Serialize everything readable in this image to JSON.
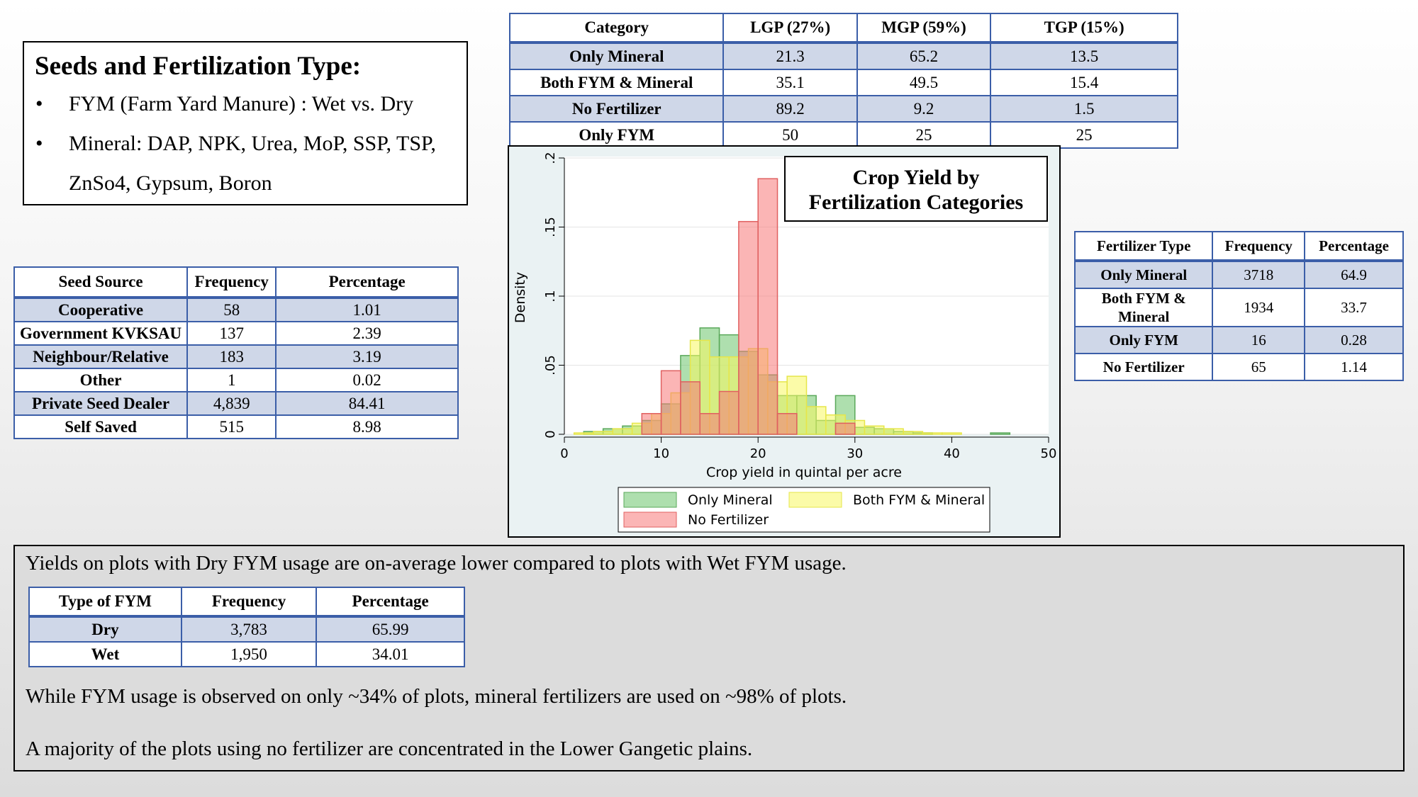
{
  "seeds_fertilization": {
    "title": "Seeds and Fertilization Type:",
    "bullets": [
      "FYM (Farm Yard Manure) : Wet vs. Dry",
      "Mineral: DAP, NPK, Urea, MoP, SSP, TSP, ZnSo4, Gypsum, Boron"
    ]
  },
  "category_table": {
    "headers": [
      "Category",
      "LGP (27%)",
      "MGP (59%)",
      "TGP (15%)"
    ],
    "rows": [
      [
        "Only Mineral",
        "21.3",
        "65.2",
        "13.5"
      ],
      [
        "Both FYM & Mineral",
        "35.1",
        "49.5",
        "15.4"
      ],
      [
        "No Fertilizer",
        "89.2",
        "9.2",
        "1.5"
      ],
      [
        "Only FYM",
        "50",
        "25",
        "25"
      ]
    ]
  },
  "seed_table": {
    "headers": [
      "Seed Source",
      "Frequency",
      "Percentage"
    ],
    "rows": [
      [
        "Cooperative",
        "58",
        "1.01"
      ],
      [
        "Government KVKSAU",
        "137",
        "2.39"
      ],
      [
        "Neighbour/Relative",
        "183",
        "3.19"
      ],
      [
        "Other",
        "1",
        "0.02"
      ],
      [
        "Private Seed Dealer",
        "4,839",
        "84.41"
      ],
      [
        "Self Saved",
        "515",
        "8.98"
      ]
    ]
  },
  "fert_table": {
    "headers": [
      "Fertilizer Type",
      "Frequency",
      "Percentage"
    ],
    "rows": [
      [
        "Only Mineral",
        "3718",
        "64.9"
      ],
      [
        "Both FYM & Mineral",
        "1934",
        "33.7"
      ],
      [
        "Only FYM",
        "16",
        "0.28"
      ],
      [
        "No Fertilizer",
        "65",
        "1.14"
      ]
    ]
  },
  "bottom": {
    "line1": "Yields on plots with Dry FYM usage are on-average lower compared to plots with Wet FYM usage.",
    "line2": "While FYM usage is observed on only ~34% of plots, mineral fertilizers are used on ~98% of plots.",
    "line3": "A majority of the plots using no fertilizer are concentrated in the Lower Gangetic plains."
  },
  "fym_table": {
    "headers": [
      "Type of FYM",
      "Frequency",
      "Percentage"
    ],
    "rows": [
      [
        "Dry",
        "3,783",
        "65.99"
      ],
      [
        "Wet",
        "1,950",
        "34.01"
      ]
    ]
  },
  "chart_data": {
    "type": "histogram",
    "title": "Crop Yield by Fertilization Categories",
    "xlabel": "Crop yield in quintal per acre",
    "ylabel": "Density",
    "xlim": [
      0,
      50
    ],
    "ylim": [
      0,
      0.2
    ],
    "xticks": [
      0,
      10,
      20,
      30,
      40,
      50
    ],
    "xtick_labels": [
      "0",
      "10",
      "20",
      "30",
      "40",
      "50"
    ],
    "yticks": [
      0,
      0.05,
      0.1,
      0.15,
      0.2
    ],
    "ytick_labels": [
      "0",
      ".05",
      ".1",
      ".15",
      ".2"
    ],
    "grid": true,
    "legend_position": "bottom",
    "series": [
      {
        "name": "Only Mineral",
        "color": "#6cc46c",
        "edge": "#5aa85a",
        "bins": [
          [
            2,
            4,
            0.002
          ],
          [
            4,
            6,
            0.004
          ],
          [
            6,
            8,
            0.006
          ],
          [
            8,
            10,
            0.01
          ],
          [
            10,
            12,
            0.022
          ],
          [
            12,
            14,
            0.057
          ],
          [
            14,
            16,
            0.077
          ],
          [
            16,
            18,
            0.072
          ],
          [
            18,
            20,
            0.06
          ],
          [
            20,
            22,
            0.043
          ],
          [
            22,
            24,
            0.028
          ],
          [
            24,
            26,
            0.028
          ],
          [
            26,
            28,
            0.01
          ],
          [
            28,
            30,
            0.028
          ],
          [
            30,
            32,
            0.005
          ],
          [
            32,
            34,
            0.004
          ],
          [
            34,
            36,
            0.002
          ],
          [
            36,
            38,
            0.001
          ],
          [
            44,
            46,
            0.001
          ]
        ]
      },
      {
        "name": "Both FYM & Mineral",
        "color": "#f8f860",
        "edge": "#e6e64a",
        "bins": [
          [
            1,
            3,
            0.001
          ],
          [
            3,
            5,
            0.002
          ],
          [
            5,
            7,
            0.004
          ],
          [
            7,
            9,
            0.008
          ],
          [
            9,
            11,
            0.015
          ],
          [
            11,
            13,
            0.03
          ],
          [
            13,
            15,
            0.068
          ],
          [
            15,
            17,
            0.056
          ],
          [
            17,
            19,
            0.056
          ],
          [
            19,
            21,
            0.062
          ],
          [
            21,
            23,
            0.038
          ],
          [
            23,
            25,
            0.042
          ],
          [
            25,
            27,
            0.02
          ],
          [
            27,
            29,
            0.014
          ],
          [
            29,
            31,
            0.01
          ],
          [
            31,
            33,
            0.006
          ],
          [
            33,
            35,
            0.004
          ],
          [
            35,
            37,
            0.002
          ],
          [
            37,
            39,
            0.001
          ],
          [
            39,
            41,
            0.001
          ]
        ]
      },
      {
        "name": "No Fertilizer",
        "color": "#f87878",
        "edge": "#e06060",
        "bins": [
          [
            8,
            10,
            0.015
          ],
          [
            10,
            12,
            0.046
          ],
          [
            12,
            14,
            0.038
          ],
          [
            14,
            16,
            0.015
          ],
          [
            16,
            18,
            0.031
          ],
          [
            18,
            20,
            0.154
          ],
          [
            20,
            22,
            0.185
          ],
          [
            22,
            24,
            0.015
          ],
          [
            28,
            30,
            0.008
          ]
        ]
      }
    ]
  }
}
